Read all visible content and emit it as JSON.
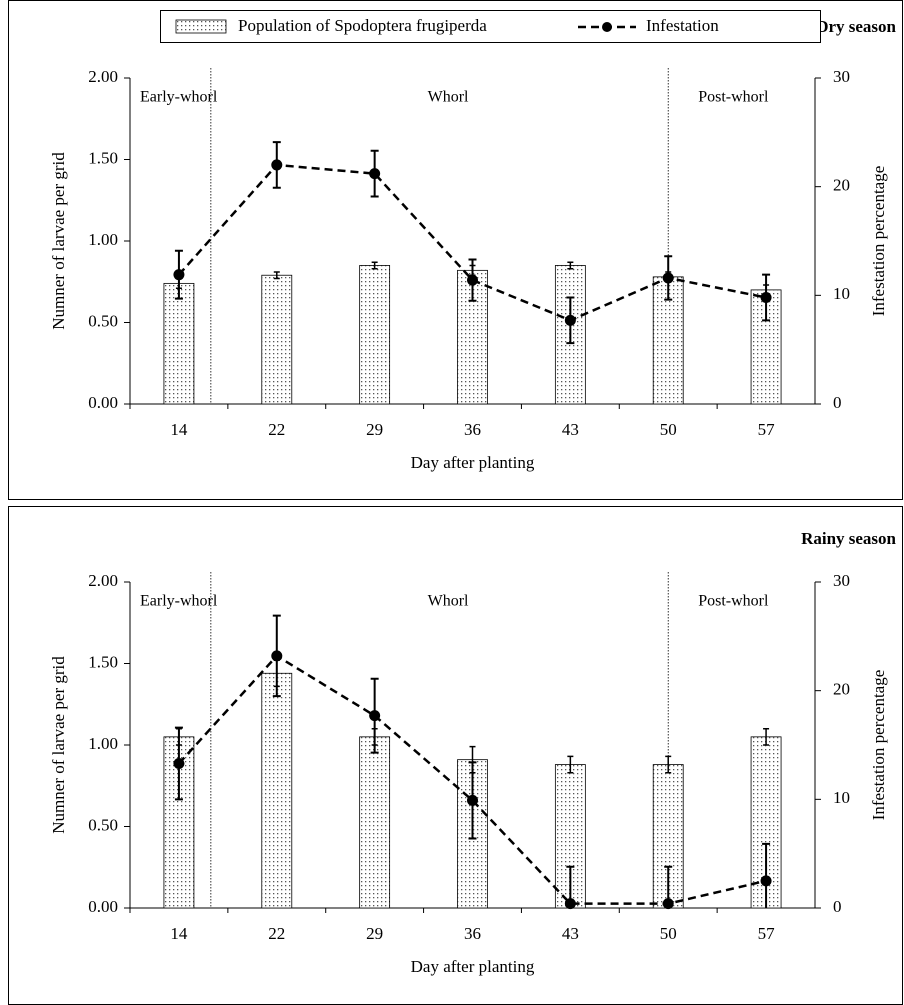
{
  "chart_data": [
    {
      "type": "bar-line",
      "title": "Dry season",
      "legend": true,
      "xlabel": "Day after planting",
      "ylabel": "Numner of larvae per grid",
      "y2label": "Infestation percentage",
      "phases": [
        "Early-whorl",
        "Whorl",
        "Post-whorl"
      ],
      "categories": [
        "14",
        "22",
        "29",
        "36",
        "43",
        "50",
        "57"
      ],
      "series": [
        {
          "name": "Population of Spodoptera frugiperda",
          "type": "bar",
          "color": "#000000",
          "values": [
            0.74,
            0.79,
            0.85,
            0.82,
            0.85,
            0.78,
            0.7
          ],
          "errors": [
            0.03,
            0.02,
            0.02,
            0.03,
            0.02,
            0.03,
            0.03
          ]
        },
        {
          "name": "Infestation",
          "type": "line",
          "axis": "y2",
          "color": "#000000",
          "values": [
            11.9,
            22,
            21.2,
            11.4,
            7.7,
            11.6,
            9.8
          ],
          "errors": [
            2.2,
            2.1,
            2.1,
            1.9,
            2.1,
            2,
            2.1
          ]
        }
      ],
      "ylim": [
        0,
        2
      ],
      "yticks": [
        {
          "value": 0,
          "label": "0.00"
        },
        {
          "value": 0.5,
          "label": "0.50"
        },
        {
          "value": 1,
          "label": "1.00"
        },
        {
          "value": 1.5,
          "label": "1.50"
        },
        {
          "value": 2,
          "label": "2.00"
        }
      ],
      "y2lim": [
        0,
        30
      ],
      "y2ticks": [
        0,
        10,
        20,
        30
      ]
    },
    {
      "type": "bar-line",
      "title": "Rainy season",
      "legend": false,
      "xlabel": "Day after planting",
      "ylabel": "Numner of larvae per grid",
      "y2label": "Infestation percentage",
      "phases": [
        "Early-whorl",
        "Whorl",
        "Post-whorl"
      ],
      "categories": [
        "14",
        "22",
        "29",
        "36",
        "43",
        "50",
        "57"
      ],
      "series": [
        {
          "name": "Population of Spodoptera frugiperda",
          "type": "bar",
          "color": "#000000",
          "values": [
            1.05,
            1.44,
            1.05,
            0.91,
            0.88,
            0.88,
            1.05
          ],
          "errors": [
            0.05,
            0.08,
            0.05,
            0.08,
            0.05,
            0.05,
            0.05
          ]
        },
        {
          "name": "Infestation",
          "type": "line",
          "axis": "y2",
          "color": "#000000",
          "values": [
            13.3,
            23.2,
            17.7,
            9.9,
            0.4,
            0.4,
            2.5
          ],
          "errors": [
            3.3,
            3.7,
            3.4,
            3.5,
            3.4,
            3.4,
            3.4
          ]
        }
      ],
      "ylim": [
        0,
        2
      ],
      "yticks": [
        {
          "value": 0,
          "label": "0.00"
        },
        {
          "value": 0.5,
          "label": "0.50"
        },
        {
          "value": 1,
          "label": "1.00"
        },
        {
          "value": 1.5,
          "label": "1.50"
        },
        {
          "value": 2,
          "label": "2.00"
        }
      ],
      "y2lim": [
        0,
        30
      ],
      "y2ticks": [
        0,
        10,
        20,
        30
      ]
    }
  ]
}
